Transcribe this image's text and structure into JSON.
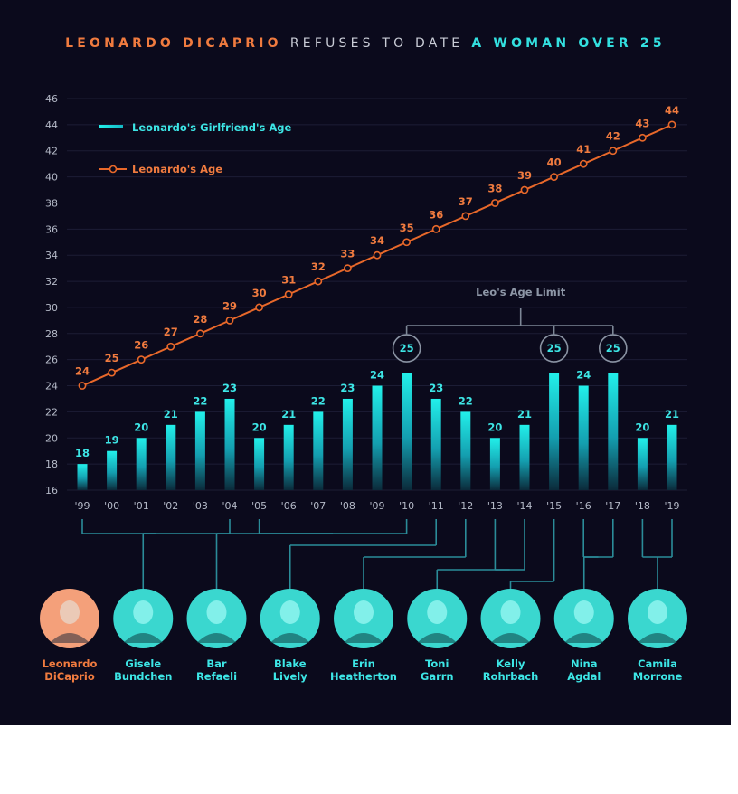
{
  "title": {
    "part1": "LEONARDO DICAPRIO",
    "part2": "REFUSES TO DATE",
    "part3": "A WOMAN OVER 25"
  },
  "colors": {
    "background": "#0b0a1c",
    "leo_line": "#e8682a",
    "leo_label": "#f07b3f",
    "bar_top": "#22f0ea",
    "bar_bottom": "#0b2a3a",
    "bracket": "#7d8796",
    "connector": "#2b8c99",
    "grid": "#1c1d35",
    "tick": "#b5bac8",
    "name_cyan": "#3de6e6",
    "title_gray": "#c9ccd6"
  },
  "chart_data": {
    "type": "bar+line",
    "categories": [
      "'99",
      "'00",
      "'01",
      "'02",
      "'03",
      "'04",
      "'05",
      "'06",
      "'07",
      "'08",
      "'09",
      "'10",
      "'11",
      "'12",
      "'13",
      "'14",
      "'15",
      "'16",
      "'17",
      "'18",
      "'19"
    ],
    "series": [
      {
        "name": "Leonardo's Girlfriend's Age",
        "type": "bar",
        "values": [
          18,
          19,
          20,
          21,
          22,
          23,
          20,
          21,
          22,
          23,
          24,
          25,
          23,
          22,
          20,
          21,
          25,
          24,
          25,
          20,
          21
        ]
      },
      {
        "name": "Leonardo's Age",
        "type": "line",
        "values": [
          24,
          25,
          26,
          27,
          28,
          29,
          30,
          31,
          32,
          33,
          34,
          35,
          36,
          37,
          38,
          39,
          40,
          41,
          42,
          43,
          44
        ]
      }
    ],
    "ylim": [
      16,
      46
    ],
    "yticks": [
      16,
      18,
      20,
      22,
      24,
      26,
      28,
      30,
      32,
      34,
      36,
      38,
      40,
      42,
      44,
      46
    ],
    "grid": true,
    "legend_position": "top-left",
    "annotation": {
      "text": "Leo's Age Limit",
      "highlight": [
        "'10",
        "'15",
        "'17"
      ],
      "value": 25
    }
  },
  "people": [
    {
      "name": "Leonardo DiCaprio",
      "lines": [
        "Leonardo",
        "DiCaprio"
      ],
      "photo_style": "leo"
    },
    {
      "name": "Gisele Bundchen",
      "lines": [
        "Gisele",
        "Bundchen"
      ],
      "photo_style": "girlfriend",
      "years": [
        "'99",
        "'04"
      ]
    },
    {
      "name": "Bar Refaeli",
      "lines": [
        "Bar",
        "Refaeli"
      ],
      "photo_style": "girlfriend",
      "years": [
        "'05",
        "'10"
      ]
    },
    {
      "name": "Blake Lively",
      "lines": [
        "Blake",
        "Lively"
      ],
      "photo_style": "girlfriend",
      "years": [
        "'11"
      ]
    },
    {
      "name": "Erin Heatherton",
      "lines": [
        "Erin",
        "Heatherton"
      ],
      "photo_style": "girlfriend",
      "years": [
        "'12"
      ]
    },
    {
      "name": "Toni Garrn",
      "lines": [
        "Toni",
        "Garrn"
      ],
      "photo_style": "girlfriend",
      "years": [
        "'13",
        "'14"
      ]
    },
    {
      "name": "Kelly Rohrbach",
      "lines": [
        "Kelly",
        "Rohrbach"
      ],
      "photo_style": "girlfriend",
      "years": [
        "'15"
      ]
    },
    {
      "name": "Nina Agdal",
      "lines": [
        "Nina",
        "Agdal"
      ],
      "photo_style": "girlfriend",
      "years": [
        "'16",
        "'17"
      ]
    },
    {
      "name": "Camila Morrone",
      "lines": [
        "Camila",
        "Morrone"
      ],
      "photo_style": "girlfriend",
      "years": [
        "'18",
        "'19"
      ]
    }
  ]
}
